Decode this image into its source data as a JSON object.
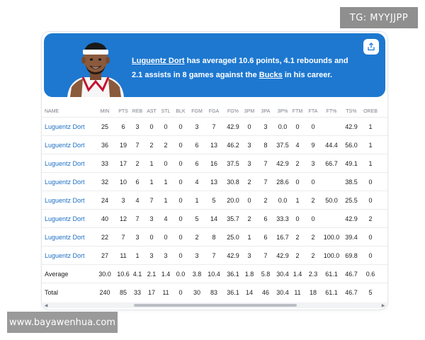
{
  "watermarks": {
    "top": "TG: MYYJJPP",
    "bottom": "www.bayawenhua.com"
  },
  "banner": {
    "player_link": "Luguentz Dort",
    "text_1": " has averaged 10.6 points, 4.1 rebounds and 2.1 assists in 8 games against the ",
    "team_link": "Bucks",
    "text_2": " in his career.",
    "share_icon": "share-icon"
  },
  "table": {
    "columns": [
      "NAME",
      "MIN",
      "PTS",
      "REB",
      "AST",
      "STL",
      "BLK",
      "FGM",
      "FGA",
      "FG%",
      "3PM",
      "3PA",
      "3P%",
      "FTM",
      "FTA",
      "FT%",
      "TS%",
      "OREB"
    ],
    "rows": [
      [
        "Luguentz Dort",
        "25",
        "6",
        "3",
        "0",
        "0",
        "0",
        "3",
        "7",
        "42.9",
        "0",
        "3",
        "0.0",
        "0",
        "0",
        "",
        "42.9",
        "1"
      ],
      [
        "Luguentz Dort",
        "36",
        "19",
        "7",
        "2",
        "2",
        "0",
        "6",
        "13",
        "46.2",
        "3",
        "8",
        "37.5",
        "4",
        "9",
        "44.4",
        "56.0",
        "1"
      ],
      [
        "Luguentz Dort",
        "33",
        "17",
        "2",
        "1",
        "0",
        "0",
        "6",
        "16",
        "37.5",
        "3",
        "7",
        "42.9",
        "2",
        "3",
        "66.7",
        "49.1",
        "1"
      ],
      [
        "Luguentz Dort",
        "32",
        "10",
        "6",
        "1",
        "1",
        "0",
        "4",
        "13",
        "30.8",
        "2",
        "7",
        "28.6",
        "0",
        "0",
        "",
        "38.5",
        "0"
      ],
      [
        "Luguentz Dort",
        "24",
        "3",
        "4",
        "7",
        "1",
        "0",
        "1",
        "5",
        "20.0",
        "0",
        "2",
        "0.0",
        "1",
        "2",
        "50.0",
        "25.5",
        "0"
      ],
      [
        "Luguentz Dort",
        "40",
        "12",
        "7",
        "3",
        "4",
        "0",
        "5",
        "14",
        "35.7",
        "2",
        "6",
        "33.3",
        "0",
        "0",
        "",
        "42.9",
        "2"
      ],
      [
        "Luguentz Dort",
        "22",
        "7",
        "3",
        "0",
        "0",
        "0",
        "2",
        "8",
        "25.0",
        "1",
        "6",
        "16.7",
        "2",
        "2",
        "100.0",
        "39.4",
        "0"
      ],
      [
        "Luguentz Dort",
        "27",
        "11",
        "1",
        "3",
        "3",
        "0",
        "3",
        "7",
        "42.9",
        "3",
        "7",
        "42.9",
        "2",
        "2",
        "100.0",
        "69.8",
        "0"
      ]
    ],
    "summary": [
      [
        "Average",
        "30.0",
        "10.6",
        "4.1",
        "2.1",
        "1.4",
        "0.0",
        "3.8",
        "10.4",
        "36.1",
        "1.8",
        "5.8",
        "30.4",
        "1.4",
        "2.3",
        "61.1",
        "46.7",
        "0.6"
      ],
      [
        "Total",
        "240",
        "85",
        "33",
        "17",
        "11",
        "0",
        "30",
        "83",
        "36.1",
        "14",
        "46",
        "30.4",
        "11",
        "18",
        "61.1",
        "46.7",
        "5"
      ]
    ]
  },
  "scrollbar": {
    "left_arrow_icon": "scroll-left-arrow-icon",
    "right_arrow_icon": "scroll-right-arrow-icon"
  }
}
